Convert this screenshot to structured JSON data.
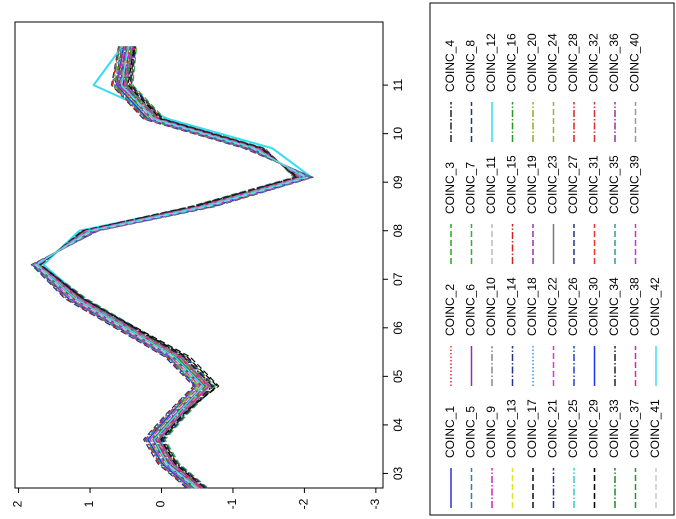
{
  "chart_data": {
    "type": "line",
    "x": [
      2.7,
      3.2,
      3.7,
      4.2,
      4.8,
      5.4,
      6,
      6.6,
      7.3,
      8,
      8.5,
      9.1,
      9.7,
      10.3,
      11,
      11.8
    ],
    "xlim": [
      2.7,
      12.3
    ],
    "ylim": [
      -3.1,
      2.05
    ],
    "xticks": [
      {
        "value": 3,
        "label": "03"
      },
      {
        "value": 4,
        "label": "04"
      },
      {
        "value": 5,
        "label": "05"
      },
      {
        "value": 6,
        "label": "06"
      },
      {
        "value": 7,
        "label": "07"
      },
      {
        "value": 8,
        "label": "08"
      },
      {
        "value": 9,
        "label": "09"
      },
      10,
      11
    ],
    "yticks": [
      2,
      1,
      0,
      -1,
      -2,
      -3
    ],
    "legend": "right",
    "series": [
      {
        "name": "COINC_1",
        "color": "#3333cc",
        "dash": "solid",
        "values": [
          -0.55,
          -0.15,
          0.05,
          -0.25,
          -0.65,
          -0.25,
          0.45,
          1.15,
          1.72,
          1.05,
          -0.5,
          -1.95,
          -1.35,
          0.05,
          0.5,
          0.4
        ]
      },
      {
        "name": "COINC_2",
        "color": "#e03030",
        "dash": "dotted",
        "values": [
          -0.45,
          -0.05,
          0.15,
          -0.15,
          -0.55,
          -0.15,
          0.55,
          1.25,
          1.78,
          0.95,
          -0.65,
          -2.05,
          -1.25,
          0.15,
          0.6,
          0.5
        ]
      },
      {
        "name": "COINC_3",
        "color": "#22aa22",
        "dash": "dashed",
        "values": [
          -0.6,
          -0.2,
          0.0,
          -0.3,
          -0.7,
          -0.3,
          0.4,
          1.1,
          1.7,
          1.1,
          -0.45,
          -1.9,
          -1.4,
          0.0,
          0.45,
          0.4
        ]
      },
      {
        "name": "COINC_4",
        "color": "#222222",
        "dash": "dashdot",
        "values": [
          -0.4,
          0.0,
          0.2,
          -0.1,
          -0.5,
          -0.1,
          0.6,
          1.3,
          1.8,
          0.9,
          -0.7,
          -2.1,
          -1.2,
          0.2,
          0.65,
          0.55
        ]
      },
      {
        "name": "COINC_5",
        "color": "#2a8a8a",
        "dash": "dashed",
        "values": [
          -0.52,
          -0.12,
          0.08,
          -0.22,
          -0.62,
          -0.22,
          0.48,
          1.18,
          1.74,
          1.02,
          -0.58,
          -1.98,
          -1.32,
          0.08,
          0.53,
          0.43
        ]
      },
      {
        "name": "COINC_6",
        "color": "#8833aa",
        "dash": "solid",
        "values": [
          -0.48,
          -0.08,
          0.12,
          -0.18,
          -0.58,
          -0.18,
          0.52,
          1.22,
          1.76,
          0.98,
          -0.62,
          -2.02,
          -1.28,
          0.12,
          0.57,
          0.47
        ]
      },
      {
        "name": "COINC_7",
        "color": "#33aa33",
        "dash": "dashed",
        "values": [
          -0.65,
          -0.25,
          -0.05,
          -0.35,
          -0.75,
          -0.35,
          0.35,
          1.05,
          1.68,
          1.12,
          -0.4,
          -1.85,
          -1.45,
          -0.05,
          0.4,
          0.35
        ]
      },
      {
        "name": "COINC_8",
        "color": "#223388",
        "dash": "dashed",
        "values": [
          -0.35,
          0.05,
          0.25,
          -0.05,
          -0.45,
          -0.05,
          0.65,
          1.35,
          1.82,
          0.88,
          -0.75,
          -2.12,
          -1.15,
          0.25,
          0.7,
          0.6
        ]
      },
      {
        "name": "COINC_9",
        "color": "#cc22cc",
        "dash": "dashdot",
        "values": [
          -0.58,
          -0.18,
          0.02,
          -0.28,
          -0.68,
          -0.28,
          0.42,
          1.12,
          1.71,
          1.08,
          -0.48,
          -1.92,
          -1.38,
          0.02,
          0.48,
          0.38
        ]
      },
      {
        "name": "COINC_10",
        "color": "#888888",
        "dash": "dashdot",
        "values": [
          -0.42,
          -0.02,
          0.18,
          -0.12,
          -0.52,
          -0.12,
          0.58,
          1.28,
          1.79,
          0.92,
          -0.68,
          -2.08,
          -1.22,
          0.18,
          0.62,
          0.52
        ]
      },
      {
        "name": "COINC_11",
        "color": "#bbbbbb",
        "dash": "dashed",
        "values": [
          -0.5,
          -0.1,
          0.1,
          -0.2,
          -0.6,
          -0.2,
          0.5,
          1.2,
          1.75,
          1.0,
          -0.6,
          -2.0,
          -1.3,
          0.1,
          0.55,
          0.45
        ]
      },
      {
        "name": "COINC_12",
        "color": "#33ddee",
        "dash": "solid",
        "values": [
          -0.45,
          -0.05,
          0.0,
          -0.3,
          -0.55,
          -0.15,
          0.45,
          1.1,
          1.65,
          1.15,
          -0.5,
          -2.1,
          -1.55,
          -0.1,
          0.95,
          0.55
        ]
      },
      {
        "name": "COINC_13",
        "color": "#e6e020",
        "dash": "dashed",
        "values": [
          -0.53,
          -0.13,
          0.07,
          -0.23,
          -0.63,
          -0.23,
          0.47,
          1.17,
          1.73,
          1.03,
          -0.55,
          -1.97,
          -1.33,
          0.07,
          0.52,
          0.42
        ]
      },
      {
        "name": "COINC_14",
        "color": "#223388",
        "dash": "dashdot",
        "values": [
          -0.47,
          -0.07,
          0.13,
          -0.17,
          -0.57,
          -0.17,
          0.53,
          1.23,
          1.77,
          0.97,
          -0.63,
          -2.03,
          -1.27,
          0.13,
          0.58,
          0.48
        ]
      },
      {
        "name": "COINC_15",
        "color": "#cc2222",
        "dash": "dashdot",
        "values": [
          -0.62,
          -0.22,
          -0.02,
          -0.32,
          -0.72,
          -0.32,
          0.38,
          1.08,
          1.69,
          1.1,
          -0.43,
          -1.88,
          -1.42,
          -0.02,
          0.43,
          0.37
        ]
      },
      {
        "name": "COINC_16",
        "color": "#229922",
        "dash": "dashdot",
        "values": [
          -0.38,
          0.02,
          0.22,
          -0.08,
          -0.48,
          -0.08,
          0.62,
          1.32,
          1.81,
          0.9,
          -0.72,
          -2.1,
          -1.18,
          0.22,
          0.68,
          0.58
        ]
      },
      {
        "name": "COINC_17",
        "color": "#111111",
        "dash": "dashed",
        "values": [
          -0.56,
          -0.16,
          0.04,
          -0.26,
          -0.8,
          -0.4,
          0.35,
          1.1,
          1.72,
          1.05,
          -0.5,
          -1.95,
          -1.36,
          0.04,
          0.5,
          0.4
        ]
      },
      {
        "name": "COINC_18",
        "color": "#3399ee",
        "dash": "dotted",
        "values": [
          -0.44,
          -0.04,
          0.16,
          -0.14,
          -0.5,
          -0.1,
          0.6,
          1.28,
          1.78,
          0.95,
          -0.66,
          -2.06,
          -1.24,
          0.16,
          0.6,
          0.5
        ]
      },
      {
        "name": "COINC_19",
        "color": "#9933aa",
        "dash": "dashed",
        "values": [
          -0.6,
          -0.18,
          0.03,
          -0.27,
          -0.66,
          -0.26,
          0.44,
          1.14,
          1.71,
          1.06,
          -0.52,
          -1.94,
          -1.37,
          0.03,
          0.49,
          0.39
        ]
      },
      {
        "name": "COINC_20",
        "color": "#99aa22",
        "dash": "dashdot",
        "values": [
          -0.41,
          -0.01,
          0.19,
          -0.11,
          -0.51,
          -0.11,
          0.59,
          1.29,
          1.8,
          0.91,
          -0.69,
          -2.09,
          -1.21,
          0.19,
          0.64,
          0.54
        ]
      },
      {
        "name": "COINC_21",
        "color": "#223388",
        "dash": "dashdot",
        "values": [
          -0.51,
          -0.11,
          0.09,
          -0.21,
          -0.61,
          -0.21,
          0.49,
          1.19,
          1.75,
          1.01,
          -0.59,
          -1.99,
          -1.31,
          0.09,
          0.54,
          0.44
        ]
      },
      {
        "name": "COINC_22",
        "color": "#dd33dd",
        "dash": "dashed",
        "values": [
          -0.49,
          -0.09,
          0.11,
          -0.19,
          -0.59,
          -0.19,
          0.51,
          1.21,
          1.75,
          0.99,
          -0.61,
          -2.01,
          -1.29,
          0.11,
          0.56,
          0.46
        ]
      },
      {
        "name": "COINC_23",
        "color": "#777777",
        "dash": "solid",
        "values": [
          -0.57,
          -0.17,
          0.03,
          -0.27,
          -0.67,
          -0.27,
          0.43,
          1.13,
          1.72,
          1.07,
          -0.5,
          -1.93,
          -1.37,
          0.03,
          0.5,
          0.41
        ]
      },
      {
        "name": "COINC_24",
        "color": "#aaaa33",
        "dash": "dashed",
        "values": [
          -0.43,
          -0.03,
          0.17,
          -0.13,
          -0.53,
          -0.13,
          0.57,
          1.27,
          1.79,
          0.93,
          -0.67,
          -2.07,
          -1.23,
          0.17,
          0.61,
          0.51
        ]
      },
      {
        "name": "COINC_25",
        "color": "#33cccc",
        "dash": "dashdot",
        "values": [
          -0.54,
          -0.14,
          0.06,
          -0.24,
          -0.64,
          -0.24,
          0.46,
          1.16,
          1.73,
          1.04,
          -0.56,
          -1.96,
          -1.34,
          0.06,
          0.51,
          0.41
        ]
      },
      {
        "name": "COINC_26",
        "color": "#2244cc",
        "dash": "dashdot",
        "values": [
          -0.46,
          -0.06,
          0.14,
          -0.16,
          -0.56,
          -0.16,
          0.54,
          1.24,
          1.77,
          0.96,
          -0.64,
          -2.04,
          -1.26,
          0.14,
          0.59,
          0.49
        ]
      },
      {
        "name": "COINC_27",
        "color": "#223388",
        "dash": "dashed",
        "values": [
          -0.63,
          -0.23,
          -0.03,
          -0.33,
          -0.73,
          -0.33,
          0.37,
          1.07,
          1.69,
          1.11,
          -0.42,
          -1.87,
          -1.43,
          -0.03,
          0.42,
          0.36
        ]
      },
      {
        "name": "COINC_28",
        "color": "#dd2222",
        "dash": "dashdot",
        "values": [
          -0.37,
          0.03,
          0.23,
          -0.07,
          -0.47,
          -0.07,
          0.63,
          1.33,
          1.81,
          0.89,
          -0.73,
          -2.11,
          -1.17,
          0.23,
          0.69,
          0.59
        ]
      },
      {
        "name": "COINC_29",
        "color": "#000000",
        "dash": "dashed",
        "values": [
          -0.59,
          -0.19,
          0.01,
          -0.29,
          -0.78,
          -0.36,
          0.38,
          1.1,
          1.7,
          1.09,
          -0.47,
          -1.91,
          -1.39,
          0.01,
          0.47,
          0.38
        ]
      },
      {
        "name": "COINC_30",
        "color": "#2233ee",
        "dash": "solid",
        "values": [
          -0.41,
          -0.01,
          0.19,
          -0.11,
          -0.48,
          -0.1,
          0.6,
          1.3,
          1.8,
          0.91,
          -0.7,
          -2.09,
          -1.21,
          0.19,
          0.63,
          0.53
        ]
      },
      {
        "name": "COINC_31",
        "color": "#ee3333",
        "dash": "dashed",
        "values": [
          -0.5,
          -0.1,
          0.1,
          -0.2,
          -0.62,
          -0.21,
          0.49,
          1.2,
          1.74,
          1.0,
          -0.6,
          -2.0,
          -1.3,
          0.1,
          0.55,
          0.45
        ]
      },
      {
        "name": "COINC_32",
        "color": "#cc3333",
        "dash": "dashdot",
        "values": [
          -0.55,
          -0.13,
          0.06,
          -0.24,
          -0.64,
          -0.24,
          0.47,
          1.16,
          1.73,
          1.03,
          -0.56,
          -1.97,
          -1.34,
          0.06,
          0.52,
          0.42
        ]
      },
      {
        "name": "COINC_33",
        "color": "#228822",
        "dash": "dashdot",
        "values": [
          -0.45,
          -0.07,
          0.14,
          -0.16,
          -0.56,
          -0.16,
          0.53,
          1.24,
          1.77,
          0.97,
          -0.64,
          -2.03,
          -1.26,
          0.14,
          0.58,
          0.48
        ]
      },
      {
        "name": "COINC_34",
        "color": "#222222",
        "dash": "dashdot",
        "values": [
          -0.61,
          -0.21,
          -0.01,
          -0.31,
          -0.71,
          -0.31,
          0.39,
          1.09,
          1.7,
          1.09,
          -0.44,
          -1.89,
          -1.41,
          -0.01,
          0.44,
          0.37
        ]
      },
      {
        "name": "COINC_35",
        "color": "#339999",
        "dash": "dashed",
        "values": [
          -0.39,
          0.01,
          0.21,
          -0.09,
          -0.49,
          -0.09,
          0.61,
          1.31,
          1.8,
          0.9,
          -0.71,
          -2.1,
          -1.19,
          0.21,
          0.66,
          0.56
        ]
      },
      {
        "name": "COINC_36",
        "color": "#993399",
        "dash": "dashdot",
        "values": [
          -0.53,
          -0.11,
          0.08,
          -0.22,
          -0.6,
          -0.2,
          0.5,
          1.19,
          1.74,
          1.02,
          -0.57,
          -1.98,
          -1.33,
          0.08,
          0.6,
          0.5
        ]
      },
      {
        "name": "COINC_37",
        "color": "#229922",
        "dash": "dashed",
        "values": [
          -0.47,
          -0.09,
          0.12,
          -0.18,
          -0.6,
          -0.22,
          0.48,
          1.21,
          1.76,
          0.98,
          -0.61,
          -2.02,
          -1.27,
          0.12,
          0.5,
          0.42
        ]
      },
      {
        "name": "COINC_38",
        "color": "#dd22aa",
        "dash": "dashed",
        "values": [
          -0.58,
          -0.16,
          0.04,
          -0.26,
          -0.66,
          -0.26,
          0.44,
          1.14,
          1.72,
          1.06,
          -0.52,
          -1.94,
          -1.36,
          0.04,
          0.62,
          0.52
        ]
      },
      {
        "name": "COINC_39",
        "color": "#cc33cc",
        "dash": "dashed",
        "values": [
          -0.42,
          -0.04,
          0.16,
          -0.14,
          -0.54,
          -0.14,
          0.56,
          1.26,
          1.78,
          0.94,
          -0.66,
          -2.06,
          -1.24,
          0.16,
          0.52,
          0.44
        ]
      },
      {
        "name": "COINC_40",
        "color": "#999999",
        "dash": "dashed",
        "values": [
          -0.52,
          -0.14,
          0.06,
          -0.24,
          -0.64,
          -0.24,
          0.46,
          1.16,
          1.73,
          1.04,
          -0.55,
          -1.96,
          -1.33,
          0.07,
          0.58,
          0.47
        ]
      },
      {
        "name": "COINC_41",
        "color": "#c8c8c8",
        "dash": "dashed",
        "values": [
          -0.48,
          -0.06,
          0.14,
          -0.16,
          -0.56,
          -0.16,
          0.54,
          1.24,
          1.77,
          0.96,
          -0.65,
          -2.04,
          -1.27,
          0.13,
          0.56,
          0.46
        ]
      },
      {
        "name": "COINC_42",
        "color": "#44ddee",
        "dash": "solid",
        "values": [
          -0.5,
          -0.08,
          0.1,
          -0.2,
          -0.59,
          -0.19,
          0.5,
          1.2,
          1.75,
          1.0,
          -0.6,
          -2.01,
          -1.3,
          0.1,
          0.56,
          0.46
        ]
      }
    ]
  }
}
